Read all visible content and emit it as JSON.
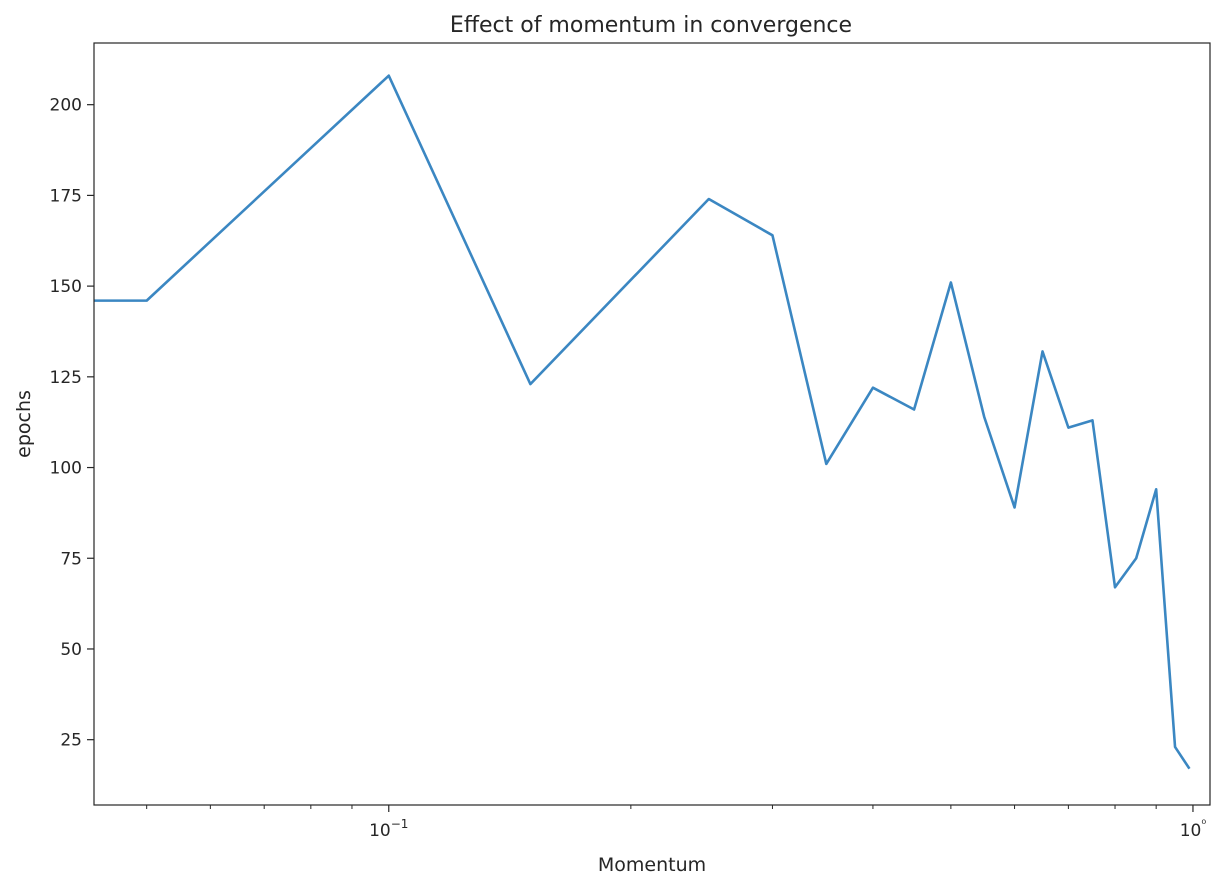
{
  "chart_data": {
    "type": "line",
    "title": "Effect of momentum in convergence",
    "xlabel": "Momentum",
    "ylabel": "epochs",
    "xscale": "log",
    "xlim": [
      0.043,
      1.05
    ],
    "ylim": [
      7,
      217
    ],
    "x_major_ticks": [
      {
        "value": 0.1,
        "label": "10−1"
      },
      {
        "value": 1,
        "label": "10⁰"
      }
    ],
    "x_minor_ticks": [
      0.05,
      0.06,
      0.07,
      0.08,
      0.09,
      0.2,
      0.3,
      0.4,
      0.5,
      0.6,
      0.7,
      0.8,
      0.9
    ],
    "y_ticks": [
      25,
      50,
      75,
      100,
      125,
      150,
      175,
      200
    ],
    "grid": false,
    "line_color": "#3b87c2",
    "series": [
      {
        "x": [
          0.04,
          0.05,
          0.1,
          0.15,
          0.25,
          0.3,
          0.35,
          0.4,
          0.45,
          0.5,
          0.55,
          0.6,
          0.65,
          0.7,
          0.75,
          0.8,
          0.85,
          0.9,
          0.95,
          0.99
        ],
        "y": [
          146,
          146,
          208,
          123,
          174,
          164,
          101,
          122,
          116,
          151,
          114,
          89,
          132,
          111,
          113,
          67,
          75,
          94,
          23,
          17
        ]
      }
    ]
  }
}
